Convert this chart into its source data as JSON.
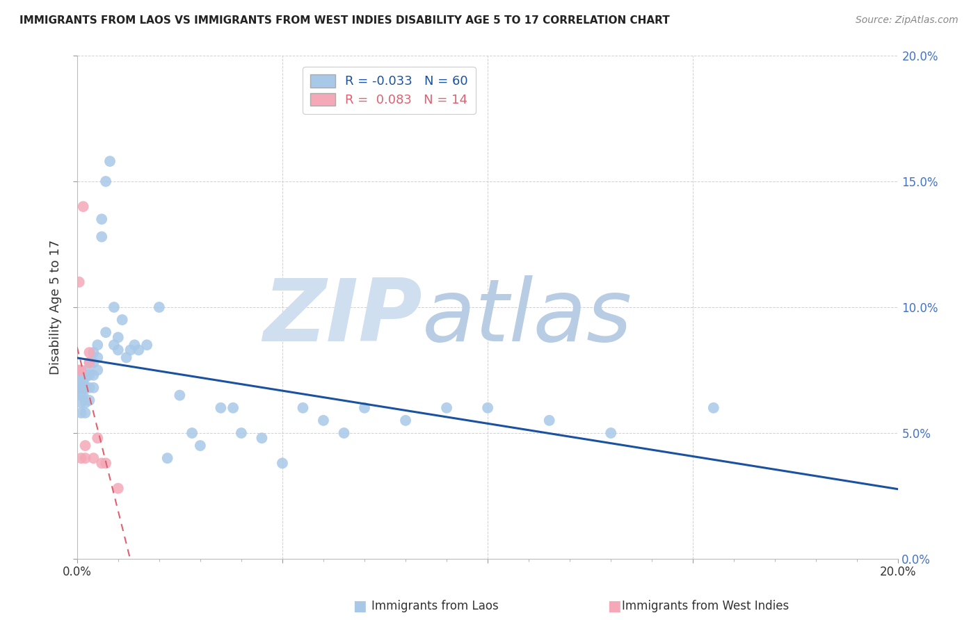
{
  "title": "IMMIGRANTS FROM LAOS VS IMMIGRANTS FROM WEST INDIES DISABILITY AGE 5 TO 17 CORRELATION CHART",
  "source": "Source: ZipAtlas.com",
  "ylabel": "Disability Age 5 to 17",
  "xmin": 0.0,
  "xmax": 0.2,
  "ymin": 0.0,
  "ymax": 0.2,
  "r_laos": -0.033,
  "n_laos": 60,
  "r_west_indies": 0.083,
  "n_west_indies": 14,
  "color_laos": "#a8c8e8",
  "color_west_indies": "#f4a8b8",
  "trendline_laos_color": "#1a52a0",
  "trendline_west_indies_color": "#e06070",
  "grid_color": "#cccccc",
  "watermark_color": "#d0dff0",
  "ytick_values": [
    0.0,
    0.05,
    0.1,
    0.15,
    0.2
  ],
  "ytick_labels": [
    "0.0%",
    "5.0%",
    "10.0%",
    "15.0%",
    "20.0%"
  ],
  "xtick_values": [
    0.0,
    0.05,
    0.1,
    0.15,
    0.2
  ],
  "xtick_labels": [
    "0.0%",
    "",
    "",
    "",
    "20.0%"
  ],
  "legend_laos": "Immigrants from Laos",
  "legend_west_indies": "Immigrants from West Indies",
  "laos_x": [
    0.0005,
    0.0005,
    0.001,
    0.001,
    0.001,
    0.001,
    0.001,
    0.0015,
    0.0015,
    0.002,
    0.002,
    0.002,
    0.002,
    0.0025,
    0.003,
    0.003,
    0.003,
    0.003,
    0.004,
    0.004,
    0.004,
    0.004,
    0.005,
    0.005,
    0.005,
    0.006,
    0.006,
    0.007,
    0.007,
    0.008,
    0.009,
    0.009,
    0.01,
    0.01,
    0.011,
    0.012,
    0.013,
    0.014,
    0.015,
    0.017,
    0.02,
    0.022,
    0.025,
    0.028,
    0.03,
    0.035,
    0.038,
    0.04,
    0.045,
    0.05,
    0.055,
    0.06,
    0.065,
    0.07,
    0.08,
    0.09,
    0.1,
    0.115,
    0.13,
    0.155
  ],
  "laos_y": [
    0.073,
    0.068,
    0.072,
    0.068,
    0.065,
    0.062,
    0.058,
    0.07,
    0.065,
    0.072,
    0.068,
    0.062,
    0.058,
    0.075,
    0.078,
    0.073,
    0.068,
    0.063,
    0.082,
    0.078,
    0.073,
    0.068,
    0.085,
    0.08,
    0.075,
    0.135,
    0.128,
    0.09,
    0.15,
    0.158,
    0.1,
    0.085,
    0.088,
    0.083,
    0.095,
    0.08,
    0.083,
    0.085,
    0.083,
    0.085,
    0.1,
    0.04,
    0.065,
    0.05,
    0.045,
    0.06,
    0.06,
    0.05,
    0.048,
    0.038,
    0.06,
    0.055,
    0.05,
    0.06,
    0.055,
    0.06,
    0.06,
    0.055,
    0.05,
    0.06
  ],
  "west_indies_x": [
    0.0003,
    0.0005,
    0.001,
    0.001,
    0.0015,
    0.002,
    0.002,
    0.003,
    0.003,
    0.004,
    0.005,
    0.006,
    0.007,
    0.01
  ],
  "west_indies_y": [
    0.075,
    0.11,
    0.075,
    0.04,
    0.14,
    0.045,
    0.04,
    0.082,
    0.078,
    0.04,
    0.048,
    0.038,
    0.038,
    0.028
  ]
}
